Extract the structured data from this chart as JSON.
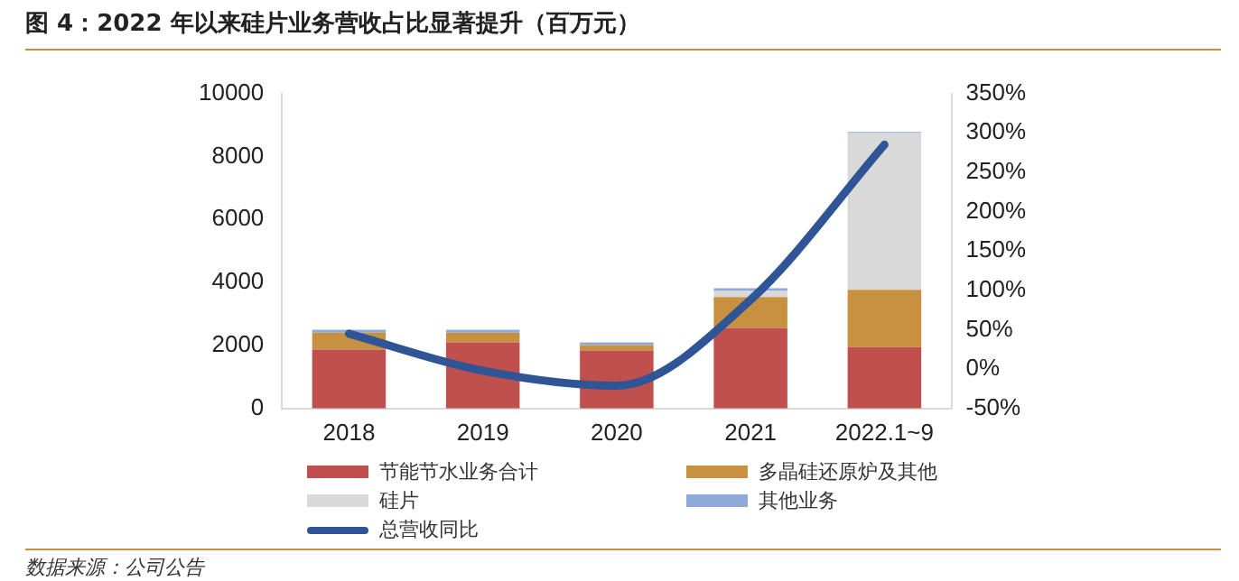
{
  "chart_data": {
    "type": "bar",
    "title": "图 4：2022 年以来硅片业务营收占比显著提升（百万元）",
    "categories": [
      "2018",
      "2019",
      "2020",
      "2021",
      "2022.1~9"
    ],
    "stacked": true,
    "series": [
      {
        "name": "节能节水业务合计",
        "color": "#c0504d",
        "values": [
          1870,
          2100,
          1840,
          2560,
          1950
        ]
      },
      {
        "name": "多晶硅还原炉及其他",
        "color": "#c8913f",
        "values": [
          540,
          310,
          170,
          980,
          1820
        ]
      },
      {
        "name": "硅片",
        "color": "#d9d9d9",
        "values": [
          0,
          0,
          0,
          190,
          4970
        ]
      },
      {
        "name": "其他业务",
        "color": "#8eaadb",
        "values": [
          90,
          90,
          90,
          90,
          40
        ]
      },
      {
        "name": "总营收同比",
        "type": "line",
        "axis": "y2",
        "color": "#2f5597",
        "values": [
          45,
          -2,
          -21,
          88,
          285
        ]
      }
    ],
    "ylim": [
      0,
      10000
    ],
    "yticks": [
      0,
      2000,
      4000,
      6000,
      8000,
      10000
    ],
    "y2lim": [
      -50,
      350
    ],
    "y2ticks": [
      {
        "value": -50,
        "label": "-50%"
      },
      {
        "value": 0,
        "label": "0%"
      },
      {
        "value": 50,
        "label": "50%"
      },
      {
        "value": 100,
        "label": "100%"
      },
      {
        "value": 150,
        "label": "150%"
      },
      {
        "value": 200,
        "label": "200%"
      },
      {
        "value": 250,
        "label": "250%"
      },
      {
        "value": 300,
        "label": "300%"
      },
      {
        "value": 350,
        "label": "350%"
      }
    ],
    "grid": false,
    "legend": "bottom",
    "annotations": [
      "数据来源：公司公告"
    ]
  }
}
